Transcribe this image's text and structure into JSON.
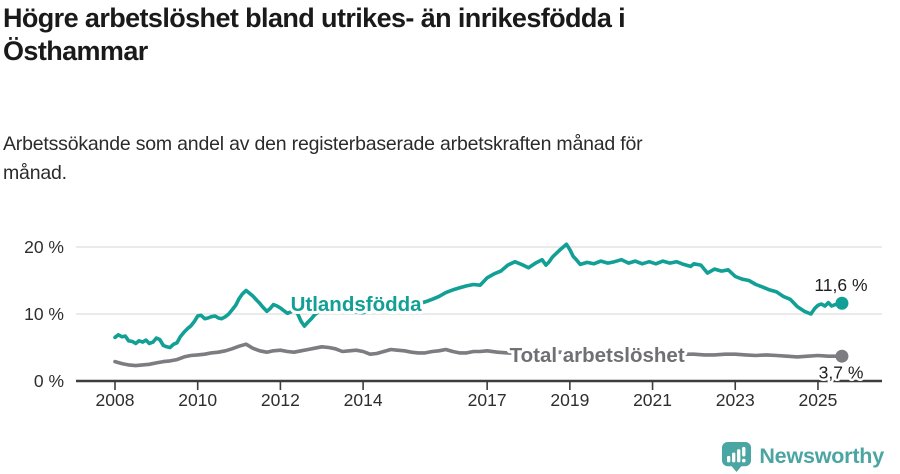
{
  "header": {
    "title": "Högre arbetslöshet bland utrikes- än inrikesfödda i\nÖsthammar",
    "subtitle": "Arbetssökande som andel av den registerbaserade arbetskraften månad för\nmånad."
  },
  "footer": {
    "brand": "Newsworthy",
    "logo_icon": "newsworthy-pin-barchart-icon",
    "brand_color": "#4ba5a2"
  },
  "colors": {
    "accent_teal": "#12a096",
    "series_gray": "#7c7c81",
    "axis_dark": "#3d3d3d",
    "gridline": "#e3e3e3",
    "text_dark": "#1f1f1f",
    "label_gray": "#6f6f74"
  },
  "chart_data": {
    "type": "line",
    "title": "Högre arbetslöshet bland utrikes- än inrikesfödda i Östhammar",
    "subtitle": "Arbetssökande som andel av den registerbaserade arbetskraften månad för månad.",
    "grid": "horizontal",
    "legend_position": "inline-labels",
    "x_axis": {
      "ticks": [
        2008,
        2010,
        2012,
        2014,
        2017,
        2019,
        2021,
        2023,
        2025
      ],
      "tick_labels": [
        "2008",
        "2010",
        "2012",
        "2014",
        "2017",
        "2019",
        "2021",
        "2023",
        "2025"
      ],
      "range": [
        2007.05,
        2026.55
      ]
    },
    "y_axis": {
      "ticks": [
        0,
        10,
        20
      ],
      "tick_labels": [
        "0 %",
        "10 %",
        "20 %"
      ],
      "range": [
        0,
        21
      ],
      "unit": "%"
    },
    "series": [
      {
        "name": "Total arbetslöshet",
        "color": "#7c7c81",
        "end_value": 3.7,
        "end_label": "3,7 %",
        "end_label_anchor": {
          "year": 2026.1,
          "value": 0.35
        },
        "name_label_anchor": {
          "year": 2019.66,
          "value": 3.9
        },
        "points": [
          [
            2008.0,
            2.9
          ],
          [
            2008.17,
            2.6
          ],
          [
            2008.33,
            2.4
          ],
          [
            2008.5,
            2.3
          ],
          [
            2008.67,
            2.4
          ],
          [
            2008.83,
            2.5
          ],
          [
            2009.0,
            2.7
          ],
          [
            2009.17,
            2.9
          ],
          [
            2009.33,
            3.0
          ],
          [
            2009.5,
            3.2
          ],
          [
            2009.67,
            3.6
          ],
          [
            2009.83,
            3.8
          ],
          [
            2010.0,
            3.9
          ],
          [
            2010.17,
            4.0
          ],
          [
            2010.33,
            4.2
          ],
          [
            2010.5,
            4.3
          ],
          [
            2010.67,
            4.5
          ],
          [
            2010.83,
            4.8
          ],
          [
            2011.0,
            5.2
          ],
          [
            2011.17,
            5.5
          ],
          [
            2011.33,
            4.9
          ],
          [
            2011.5,
            4.5
          ],
          [
            2011.67,
            4.3
          ],
          [
            2011.83,
            4.5
          ],
          [
            2012.0,
            4.6
          ],
          [
            2012.17,
            4.4
          ],
          [
            2012.33,
            4.3
          ],
          [
            2012.5,
            4.5
          ],
          [
            2012.67,
            4.7
          ],
          [
            2012.83,
            4.9
          ],
          [
            2013.0,
            5.1
          ],
          [
            2013.17,
            5.0
          ],
          [
            2013.33,
            4.8
          ],
          [
            2013.5,
            4.4
          ],
          [
            2013.67,
            4.5
          ],
          [
            2013.83,
            4.6
          ],
          [
            2014.0,
            4.4
          ],
          [
            2014.17,
            4.0
          ],
          [
            2014.33,
            4.1
          ],
          [
            2014.5,
            4.4
          ],
          [
            2014.67,
            4.7
          ],
          [
            2014.83,
            4.6
          ],
          [
            2015.0,
            4.5
          ],
          [
            2015.17,
            4.3
          ],
          [
            2015.33,
            4.2
          ],
          [
            2015.5,
            4.2
          ],
          [
            2015.67,
            4.4
          ],
          [
            2015.83,
            4.5
          ],
          [
            2016.0,
            4.7
          ],
          [
            2016.17,
            4.4
          ],
          [
            2016.33,
            4.2
          ],
          [
            2016.5,
            4.2
          ],
          [
            2016.67,
            4.4
          ],
          [
            2016.83,
            4.4
          ],
          [
            2017.0,
            4.5
          ],
          [
            2017.25,
            4.3
          ],
          [
            2017.5,
            4.2
          ],
          [
            2017.75,
            4.1
          ],
          [
            2018.0,
            4.0
          ],
          [
            2018.25,
            4.1
          ],
          [
            2018.5,
            4.2
          ],
          [
            2018.75,
            4.3
          ],
          [
            2019.0,
            4.2
          ],
          [
            2019.25,
            4.1
          ],
          [
            2019.5,
            4.0
          ],
          [
            2019.75,
            4.1
          ],
          [
            2020.0,
            4.1
          ],
          [
            2020.25,
            4.2
          ],
          [
            2020.5,
            4.1
          ],
          [
            2020.75,
            4.0
          ],
          [
            2021.0,
            4.1
          ],
          [
            2021.25,
            4.2
          ],
          [
            2021.5,
            4.1
          ],
          [
            2021.75,
            4.0
          ],
          [
            2022.0,
            4.0
          ],
          [
            2022.25,
            3.9
          ],
          [
            2022.5,
            3.9
          ],
          [
            2022.75,
            4.0
          ],
          [
            2023.0,
            4.0
          ],
          [
            2023.25,
            3.9
          ],
          [
            2023.5,
            3.8
          ],
          [
            2023.75,
            3.9
          ],
          [
            2024.0,
            3.8
          ],
          [
            2024.25,
            3.7
          ],
          [
            2024.5,
            3.6
          ],
          [
            2024.75,
            3.7
          ],
          [
            2025.0,
            3.8
          ],
          [
            2025.25,
            3.7
          ],
          [
            2025.58,
            3.7
          ]
        ]
      },
      {
        "name": "Utlandsfödda",
        "color": "#12a096",
        "end_value": 11.6,
        "end_label": "11,6 %",
        "end_label_anchor": {
          "year": 2026.2,
          "value": 13.4
        },
        "name_label_anchor": {
          "year": 2013.83,
          "value": 11.5
        },
        "points": [
          [
            2008.0,
            6.5
          ],
          [
            2008.08,
            6.9
          ],
          [
            2008.17,
            6.6
          ],
          [
            2008.25,
            6.7
          ],
          [
            2008.33,
            6.0
          ],
          [
            2008.42,
            5.9
          ],
          [
            2008.5,
            5.6
          ],
          [
            2008.58,
            6.0
          ],
          [
            2008.67,
            5.8
          ],
          [
            2008.75,
            6.1
          ],
          [
            2008.83,
            5.6
          ],
          [
            2008.92,
            5.8
          ],
          [
            2009.0,
            6.4
          ],
          [
            2009.08,
            6.2
          ],
          [
            2009.17,
            5.3
          ],
          [
            2009.25,
            5.1
          ],
          [
            2009.33,
            5.0
          ],
          [
            2009.42,
            5.5
          ],
          [
            2009.5,
            5.7
          ],
          [
            2009.58,
            6.6
          ],
          [
            2009.67,
            7.3
          ],
          [
            2009.75,
            7.8
          ],
          [
            2009.83,
            8.2
          ],
          [
            2009.92,
            8.9
          ],
          [
            2010.0,
            9.7
          ],
          [
            2010.08,
            9.8
          ],
          [
            2010.17,
            9.3
          ],
          [
            2010.25,
            9.4
          ],
          [
            2010.33,
            9.6
          ],
          [
            2010.42,
            9.7
          ],
          [
            2010.5,
            9.4
          ],
          [
            2010.58,
            9.3
          ],
          [
            2010.67,
            9.6
          ],
          [
            2010.75,
            10.0
          ],
          [
            2010.83,
            10.6
          ],
          [
            2010.92,
            11.3
          ],
          [
            2011.0,
            12.3
          ],
          [
            2011.08,
            13.0
          ],
          [
            2011.17,
            13.5
          ],
          [
            2011.25,
            13.1
          ],
          [
            2011.33,
            12.7
          ],
          [
            2011.42,
            12.1
          ],
          [
            2011.5,
            11.6
          ],
          [
            2011.58,
            11.0
          ],
          [
            2011.67,
            10.4
          ],
          [
            2011.75,
            10.8
          ],
          [
            2011.83,
            11.4
          ],
          [
            2011.92,
            11.2
          ],
          [
            2012.0,
            10.9
          ],
          [
            2012.08,
            10.5
          ],
          [
            2012.17,
            10.1
          ],
          [
            2012.25,
            10.3
          ],
          [
            2012.33,
            10.7
          ],
          [
            2012.42,
            10.0
          ],
          [
            2012.5,
            8.9
          ],
          [
            2012.58,
            8.2
          ],
          [
            2012.67,
            8.8
          ],
          [
            2012.75,
            9.3
          ],
          [
            2012.83,
            9.9
          ],
          [
            2012.92,
            10.3
          ],
          [
            2013.0,
            10.6
          ],
          [
            2013.17,
            10.3
          ],
          [
            2013.33,
            10.7
          ],
          [
            2013.5,
            10.9
          ],
          [
            2013.67,
            10.5
          ],
          [
            2013.83,
            10.3
          ],
          [
            2014.0,
            10.2
          ],
          [
            2014.17,
            10.6
          ],
          [
            2014.33,
            10.9
          ],
          [
            2014.5,
            10.6
          ],
          [
            2014.67,
            10.8
          ],
          [
            2014.83,
            11.1
          ],
          [
            2015.0,
            11.0
          ],
          [
            2015.17,
            11.2
          ],
          [
            2015.33,
            11.5
          ],
          [
            2015.5,
            11.8
          ],
          [
            2015.67,
            12.2
          ],
          [
            2015.83,
            12.6
          ],
          [
            2016.0,
            13.2
          ],
          [
            2016.17,
            13.6
          ],
          [
            2016.33,
            13.9
          ],
          [
            2016.5,
            14.2
          ],
          [
            2016.67,
            14.4
          ],
          [
            2016.83,
            14.3
          ],
          [
            2017.0,
            15.4
          ],
          [
            2017.17,
            16.0
          ],
          [
            2017.33,
            16.4
          ],
          [
            2017.5,
            17.3
          ],
          [
            2017.67,
            17.8
          ],
          [
            2017.83,
            17.4
          ],
          [
            2018.0,
            16.9
          ],
          [
            2018.17,
            17.6
          ],
          [
            2018.33,
            18.1
          ],
          [
            2018.42,
            17.3
          ],
          [
            2018.5,
            17.8
          ],
          [
            2018.58,
            18.5
          ],
          [
            2018.75,
            19.5
          ],
          [
            2018.92,
            20.4
          ],
          [
            2019.0,
            19.6
          ],
          [
            2019.08,
            18.6
          ],
          [
            2019.17,
            18.0
          ],
          [
            2019.25,
            17.4
          ],
          [
            2019.42,
            17.7
          ],
          [
            2019.58,
            17.5
          ],
          [
            2019.75,
            17.9
          ],
          [
            2019.92,
            17.6
          ],
          [
            2020.08,
            17.8
          ],
          [
            2020.25,
            18.1
          ],
          [
            2020.42,
            17.6
          ],
          [
            2020.58,
            17.9
          ],
          [
            2020.75,
            17.5
          ],
          [
            2020.92,
            17.8
          ],
          [
            2021.08,
            17.5
          ],
          [
            2021.25,
            17.9
          ],
          [
            2021.42,
            17.6
          ],
          [
            2021.58,
            17.8
          ],
          [
            2021.75,
            17.4
          ],
          [
            2021.92,
            17.1
          ],
          [
            2022.0,
            17.5
          ],
          [
            2022.17,
            17.3
          ],
          [
            2022.33,
            16.1
          ],
          [
            2022.5,
            16.7
          ],
          [
            2022.67,
            16.4
          ],
          [
            2022.83,
            16.6
          ],
          [
            2023.0,
            15.6
          ],
          [
            2023.17,
            15.2
          ],
          [
            2023.33,
            15.0
          ],
          [
            2023.5,
            14.4
          ],
          [
            2023.67,
            14.0
          ],
          [
            2023.83,
            13.6
          ],
          [
            2024.0,
            13.3
          ],
          [
            2024.17,
            12.6
          ],
          [
            2024.33,
            12.2
          ],
          [
            2024.5,
            11.1
          ],
          [
            2024.67,
            10.4
          ],
          [
            2024.83,
            10.0
          ],
          [
            2024.92,
            10.8
          ],
          [
            2025.0,
            11.3
          ],
          [
            2025.08,
            11.5
          ],
          [
            2025.17,
            11.2
          ],
          [
            2025.25,
            11.7
          ],
          [
            2025.33,
            11.2
          ],
          [
            2025.42,
            11.4
          ],
          [
            2025.58,
            11.6
          ]
        ]
      }
    ]
  }
}
